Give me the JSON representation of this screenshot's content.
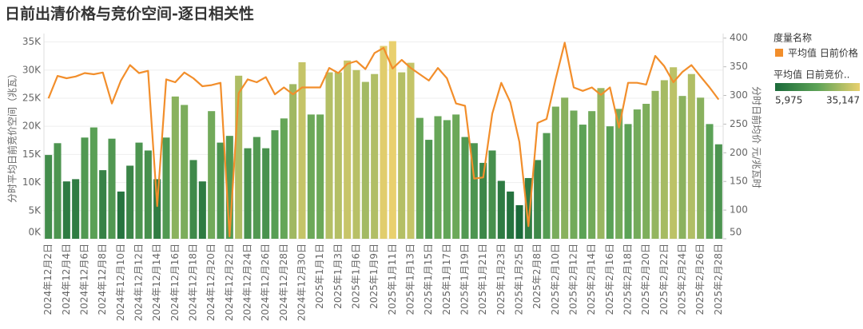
{
  "chart_data": {
    "type": "bar_line",
    "title": "日前出清价格与竞价空间-逐日相关性",
    "y_label": "分时平均日前竞价空间（兆瓦）",
    "y2_label": "分时日前均价 元/兆瓦时",
    "legend_title": "度量名称",
    "categories": [
      "2024年12月2日",
      null,
      "2024年12月4日",
      null,
      "2024年12月6日",
      null,
      "2024年12月8日",
      null,
      "2024年12月10日",
      null,
      "2024年12月12日",
      null,
      "2024年12月14日",
      null,
      "2024年12月16日",
      null,
      "2024年12月18日",
      null,
      "2024年12月20日",
      null,
      "2024年12月22日",
      null,
      "2024年12月24日",
      null,
      "2024年12月26日",
      null,
      "2024年12月28日",
      null,
      "2024年12月30日",
      null,
      "2025年1月1日",
      null,
      "2025年1月3日",
      null,
      "2025年1月6日",
      null,
      "2025年1月9日",
      null,
      "2025年1月11日",
      null,
      "2025年1月13日",
      null,
      "2025年1月15日",
      null,
      "2025年1月17日",
      null,
      "2025年1月19日",
      null,
      "2025年1月21日",
      null,
      "2025年1月23日",
      null,
      "2025年1月25日",
      null,
      "2025年2月8日",
      null,
      "2025年2月10日",
      null,
      "2025年2月12日",
      null,
      "2025年2月14日",
      null,
      "2025年2月16日",
      null,
      "2025年2月18日",
      null,
      "2025年2月20日",
      null,
      "2025年2月22日",
      null,
      "2025年2月24日",
      null,
      "2025年2月26日",
      null,
      "2025年2月28日"
    ],
    "series": [
      {
        "name": "平均值 日前竞价..",
        "type": "bar",
        "colors": [
          "#1b6a3a",
          "#5da357",
          "#e9d06e"
        ],
        "values": [
          14900,
          17000,
          10200,
          10600,
          18000,
          19800,
          12200,
          17800,
          8400,
          13000,
          17100,
          15700,
          10600,
          18000,
          25300,
          23800,
          14000,
          10200,
          22700,
          17100,
          18300,
          29000,
          16100,
          18100,
          16100,
          19300,
          21400,
          27500,
          31400,
          22100,
          22100,
          29600,
          29600,
          31700,
          30000,
          27900,
          29300,
          34300,
          35147,
          29600,
          31300,
          21500,
          17600,
          21800,
          21100,
          22100,
          18100,
          17000,
          13500,
          15700,
          10300,
          8400,
          5975,
          10800,
          14000,
          18800,
          23500,
          25100,
          22800,
          20300,
          22700,
          26800,
          20000,
          23100,
          20400,
          23000,
          24000,
          26300,
          28200,
          30500,
          25400,
          29300,
          25100,
          20400,
          16800
        ]
      },
      {
        "name": "平均值 日前价格",
        "type": "line",
        "axis": "y2",
        "color": "#f28e2b",
        "values": [
          295,
          334,
          330,
          333,
          339,
          337,
          340,
          286,
          326,
          353,
          339,
          343,
          107,
          328,
          323,
          340,
          330,
          316,
          318,
          322,
          54,
          304,
          328,
          323,
          332,
          302,
          314,
          302,
          314,
          314,
          314,
          348,
          339,
          355,
          360,
          346,
          374,
          383,
          347,
          362,
          348,
          337,
          326,
          348,
          330,
          286,
          282,
          155,
          157,
          268,
          322,
          288,
          219,
          72,
          252,
          259,
          328,
          392,
          314,
          308,
          314,
          301,
          314,
          244,
          322,
          322,
          319,
          369,
          351,
          323,
          341,
          353,
          333,
          314,
          293
        ]
      }
    ],
    "color_scale": {
      "min": {
        "value": 5975,
        "label": "5,975"
      },
      "max": {
        "value": 35147,
        "label": "35,147"
      }
    },
    "ylim": [
      0,
      36500
    ],
    "yticks": [
      {
        "value": 0,
        "label": "0K"
      },
      {
        "value": 5000,
        "label": "5K"
      },
      {
        "value": 10000,
        "label": "10K"
      },
      {
        "value": 15000,
        "label": "15K"
      },
      {
        "value": 20000,
        "label": "20K"
      },
      {
        "value": 25000,
        "label": "25K"
      },
      {
        "value": 30000,
        "label": "30K"
      },
      {
        "value": 35000,
        "label": "35K"
      }
    ],
    "y2lim": [
      50,
      408
    ],
    "y2ticks": [
      50,
      100,
      150,
      200,
      250,
      300,
      350,
      400
    ],
    "grid": true
  }
}
